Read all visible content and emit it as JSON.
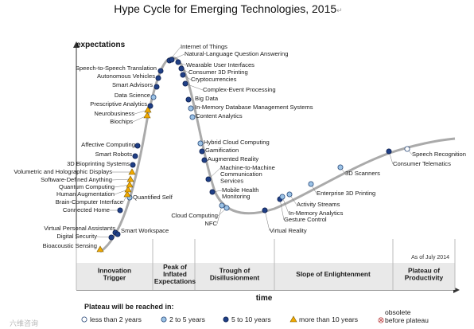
{
  "title": "Hype Cycle for Emerging Technologies, 2015",
  "title_suffix": "↵",
  "y_axis_label": "expectations",
  "x_axis_label": "time",
  "as_of": "As of July 2014",
  "watermark": "六维咨询",
  "colors": {
    "curve": "#aaaaaa",
    "less_than_2": "#ffffff",
    "two_to_5": "#9cc3e6",
    "five_to_10": "#1f3f86",
    "more_than_10": "#f2a900",
    "obsolete": "#e8a0a0",
    "phase_band": "#e9e9e9"
  },
  "phases": [
    {
      "line1": "Innovation",
      "line2": "Trigger",
      "line3": ""
    },
    {
      "line1": "Peak of",
      "line2": "Inflated",
      "line3": "Expectations"
    },
    {
      "line1": "Trough of",
      "line2": "Disillusionment",
      "line3": ""
    },
    {
      "line1": "Slope of Enlightenment",
      "line2": "",
      "line3": ""
    },
    {
      "line1": "Plateau of",
      "line2": "Productivity",
      "line3": ""
    }
  ],
  "legend": {
    "heading": "Plateau will be reached in:",
    "items": [
      {
        "label": "less than 2 years",
        "category": "less_than_2"
      },
      {
        "label": "2 to 5 years",
        "category": "two_to_5"
      },
      {
        "label": "5 to 10 years",
        "category": "five_to_10"
      },
      {
        "label": "more than 10 years",
        "category": "more_than_10"
      }
    ],
    "obsolete_line1": "obsolete",
    "obsolete_line2": "before plateau"
  },
  "technologies": [
    {
      "name": "Bioacoustic Sensing",
      "category": "more_than_10"
    },
    {
      "name": "Digital Security",
      "category": "five_to_10"
    },
    {
      "name": "Virtual Personal Assistants",
      "category": "five_to_10"
    },
    {
      "name": "Smart Workspace",
      "category": "five_to_10"
    },
    {
      "name": "Connected Home",
      "category": "five_to_10"
    },
    {
      "name": "Quantified Self",
      "category": "two_to_5"
    },
    {
      "name": "Brain-Computer Interface",
      "category": "more_than_10"
    },
    {
      "name": "Human Augmentation",
      "category": "more_than_10"
    },
    {
      "name": "Quantum Computing",
      "category": "more_than_10"
    },
    {
      "name": "Software-Defined Anything",
      "category": "more_than_10"
    },
    {
      "name": "Volumetric and Holographic Displays",
      "category": "more_than_10"
    },
    {
      "name": "3D Bioprinting Systems",
      "category": "five_to_10"
    },
    {
      "name": "Smart Robots",
      "category": "five_to_10"
    },
    {
      "name": "Affective Computing",
      "category": "five_to_10"
    },
    {
      "name": "Biochips",
      "category": "more_than_10"
    },
    {
      "name": "Neurobusiness",
      "category": "more_than_10"
    },
    {
      "name": "Prescriptive Analytics",
      "category": "five_to_10"
    },
    {
      "name": "Data Science",
      "category": "two_to_5"
    },
    {
      "name": "Smart Advisors",
      "category": "five_to_10"
    },
    {
      "name": "Autonomous Vehicles",
      "category": "five_to_10"
    },
    {
      "name": "Speech-to-Speech Translation",
      "category": "five_to_10"
    },
    {
      "name": "Internet of Things",
      "category": "five_to_10"
    },
    {
      "name": "Natural-Language Question Answering",
      "category": "five_to_10"
    },
    {
      "name": "Wearable User Interfaces",
      "category": "five_to_10"
    },
    {
      "name": "Consumer 3D Printing",
      "category": "five_to_10"
    },
    {
      "name": "Cryptocurrencies",
      "category": "five_to_10"
    },
    {
      "name": "Complex-Event Processing",
      "category": "five_to_10"
    },
    {
      "name": "Big Data",
      "category": "five_to_10"
    },
    {
      "name": "In-Memory Database Management Systems",
      "category": "two_to_5"
    },
    {
      "name": "Content Analytics",
      "category": "two_to_5"
    },
    {
      "name": "Hybrid Cloud Computing",
      "category": "two_to_5"
    },
    {
      "name": "Gamification",
      "category": "five_to_10"
    },
    {
      "name": "Augmented Reality",
      "category": "five_to_10"
    },
    {
      "name": "Machine-to-Machine Communication Services",
      "category": "five_to_10"
    },
    {
      "name": "Mobile Health Monitoring",
      "category": "five_to_10"
    },
    {
      "name": "NFC",
      "category": "two_to_5"
    },
    {
      "name": "Cloud Computing",
      "category": "two_to_5"
    },
    {
      "name": "Virtual Reality",
      "category": "five_to_10"
    },
    {
      "name": "Gesture Control",
      "category": "five_to_10"
    },
    {
      "name": "In-Memory Analytics",
      "category": "two_to_5"
    },
    {
      "name": "Activity Streams",
      "category": "two_to_5"
    },
    {
      "name": "Enterprise 3D Printing",
      "category": "two_to_5"
    },
    {
      "name": "3D Scanners",
      "category": "two_to_5"
    },
    {
      "name": "Consumer Telematics",
      "category": "five_to_10"
    },
    {
      "name": "Speech Recognition",
      "category": "less_than_2"
    }
  ]
}
